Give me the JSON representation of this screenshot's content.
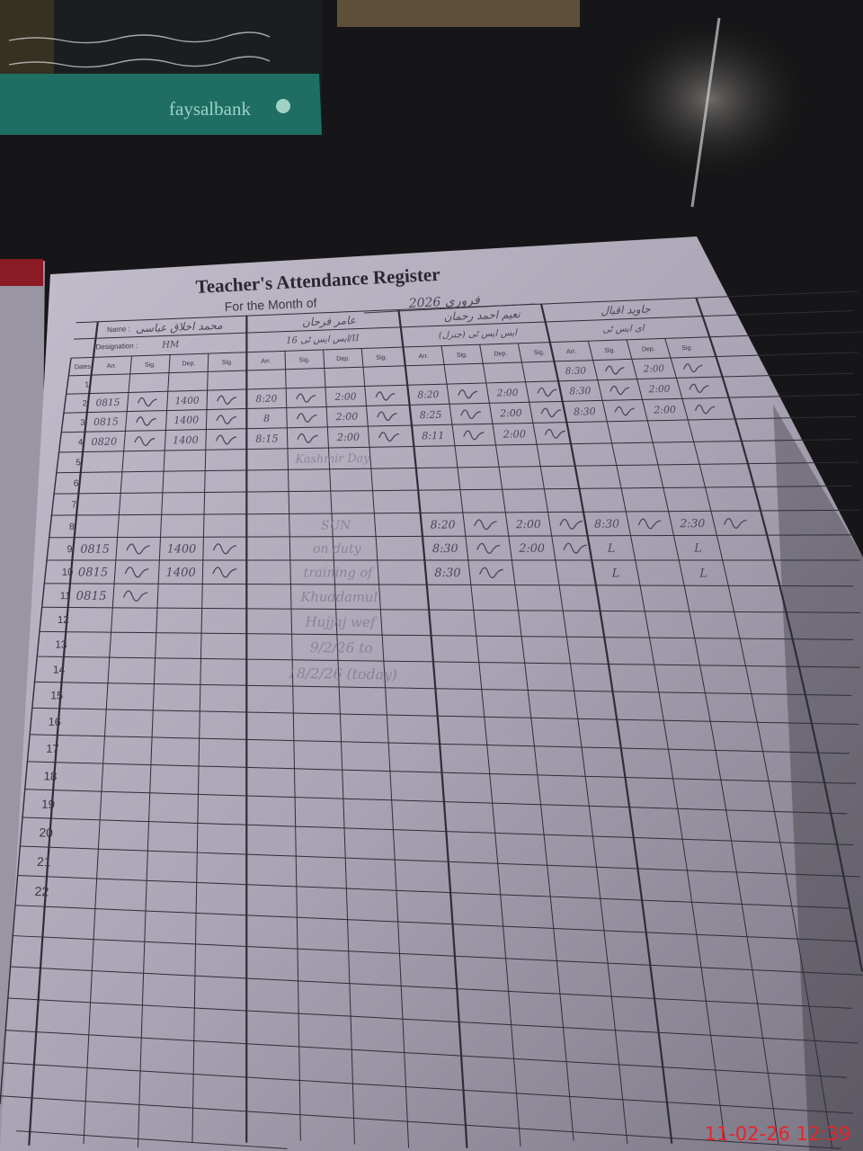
{
  "background_card": {
    "brand": "faysalbank",
    "colors": {
      "card": "#1a1d1f",
      "strip": "#1f6e63",
      "brand_text": "#9fd1c6"
    }
  },
  "register": {
    "title": "Teacher's Attendance Register",
    "month_label": "For the Month of",
    "month_value": "فروری 2026",
    "name_label": "Name :",
    "designation_label": "Designation :",
    "date_header": "Dates",
    "column_headers": [
      "Arr.",
      "Sig.",
      "Dep.",
      "Sig."
    ],
    "teachers": [
      {
        "name": "محمد اخلاق عباسی",
        "designation": "HM"
      },
      {
        "name": "عامر فرحان",
        "designation": "ایس ایس ٹی 16/II"
      },
      {
        "name": "نعیم احمد رحمان",
        "designation": "ایس ایس ٹی (جنرل)"
      },
      {
        "name": "جاوید اقبال",
        "designation": "ای ایس ٹی"
      }
    ],
    "date_labels": [
      "1",
      "2",
      "3",
      "4",
      "5",
      "6",
      "7",
      "8",
      "9",
      "10",
      "11",
      "12",
      "13",
      "14",
      "15",
      "16",
      "17",
      "18",
      "19",
      "20",
      "21",
      "22"
    ],
    "rows": [
      {
        "date": "1",
        "cells": [
          [
            "",
            ""
          ],
          [
            "",
            ""
          ],
          [
            "",
            ""
          ],
          [
            "8:30",
            "2:00"
          ]
        ]
      },
      {
        "date": "2",
        "cells": [
          [
            "0815",
            "1400"
          ],
          [
            "8:20",
            "2:00"
          ],
          [
            "8:20",
            "2:00"
          ],
          [
            "8:30",
            "2:00"
          ]
        ]
      },
      {
        "date": "3",
        "cells": [
          [
            "0815",
            "1400"
          ],
          [
            "8",
            "2:00"
          ],
          [
            "8:25",
            "2:00"
          ],
          [
            "8:30",
            "2:00"
          ]
        ]
      },
      {
        "date": "4",
        "cells": [
          [
            "0820",
            "1400"
          ],
          [
            "8:15",
            "2:00"
          ],
          [
            "8:11",
            "2:00"
          ],
          [
            "",
            ""
          ]
        ]
      },
      {
        "date": "8",
        "cells": [
          [
            "",
            ""
          ],
          [
            "",
            ""
          ],
          [
            "8:20",
            "2:00"
          ],
          [
            "8:30",
            "2:30"
          ]
        ]
      },
      {
        "date": "9",
        "cells": [
          [
            "0815",
            "1400"
          ],
          [
            "",
            ""
          ],
          [
            "8:30",
            "2:00"
          ],
          [
            "L",
            "L"
          ]
        ]
      },
      {
        "date": "10",
        "cells": [
          [
            "0815",
            "1400"
          ],
          [
            "",
            ""
          ],
          [
            "8:30",
            ""
          ],
          [
            "L",
            "L"
          ]
        ]
      },
      {
        "date": "11",
        "cells": [
          [
            "0815",
            ""
          ],
          [
            "",
            ""
          ],
          [
            "",
            ""
          ],
          [
            "",
            ""
          ]
        ]
      }
    ],
    "notes": [
      {
        "row": 5,
        "text": "Kashmir Day"
      },
      {
        "row": 8,
        "text": "SUN"
      },
      {
        "row": 9,
        "text": "on duty"
      },
      {
        "row": 10,
        "text": "training of"
      },
      {
        "row": 11,
        "text": "Khuddamul"
      },
      {
        "row": 12,
        "text": "Hujjaj wef"
      },
      {
        "row": 13,
        "text": "9/2/26 to"
      },
      {
        "row": 14,
        "text": "18/2/26 (today)"
      }
    ],
    "paper_color": "#b7b1c1",
    "ink_color": "#4b4857"
  },
  "photo_timestamp": "11-02-26  12:39",
  "timestamp_color": "#e8242a"
}
